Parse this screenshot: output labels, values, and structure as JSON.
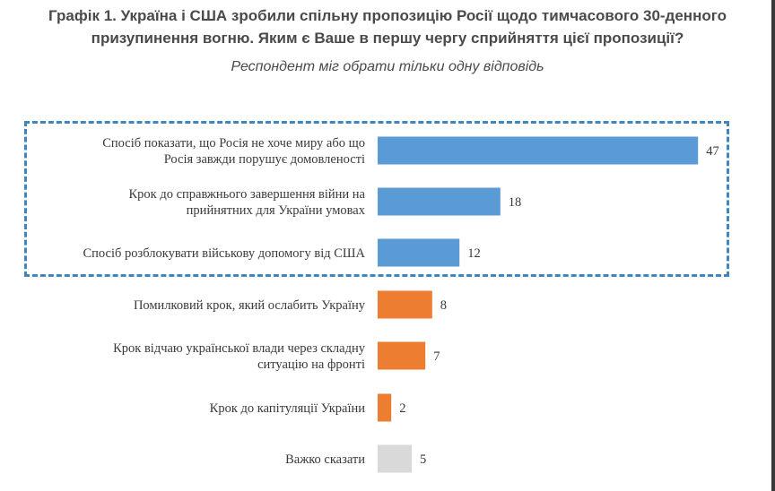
{
  "chart_data": {
    "type": "bar",
    "orientation": "horizontal",
    "title": "Графік 1. Україна і США зробили спільну пропозицію Росії щодо тимчасового 30-денного призупинення вогню. Яким є Ваше в першу чергу сприйняття цієї пропозиції?",
    "title_lines": [
      "Графік 1. Україна і США зробили спільну пропозицію Росії щодо тимчасового 30-денного",
      "призупинення вогню. Яким є Ваше в першу чергу сприйняття цієї пропозиції?"
    ],
    "subtitle": "Респондент міг обрати тільки одну відповідь",
    "xlim": [
      0,
      50
    ],
    "grid": false,
    "categories": [
      [
        "Спосіб показати, що Росія не хоче миру або що",
        "Росія завжди порушує домовленості"
      ],
      [
        "Крок до справжнього завершення війни на",
        "прийнятних для України умовах"
      ],
      [
        "Спосіб розблокувати військову допомогу від США"
      ],
      [
        "Помилковий крок, який ослабить Україну"
      ],
      [
        "Крок відчаю української влади через складну",
        "ситуацію на фронті"
      ],
      [
        "Крок до капітуляції України"
      ],
      [
        "Важко сказати"
      ]
    ],
    "values": [
      47,
      18,
      12,
      8,
      7,
      2,
      5
    ],
    "bar_colors": [
      "#5b9bd5",
      "#5b9bd5",
      "#5b9bd5",
      "#ed7d31",
      "#ed7d31",
      "#ed7d31",
      "#d9d9d9"
    ],
    "highlight": "dashed box around first three bars"
  }
}
